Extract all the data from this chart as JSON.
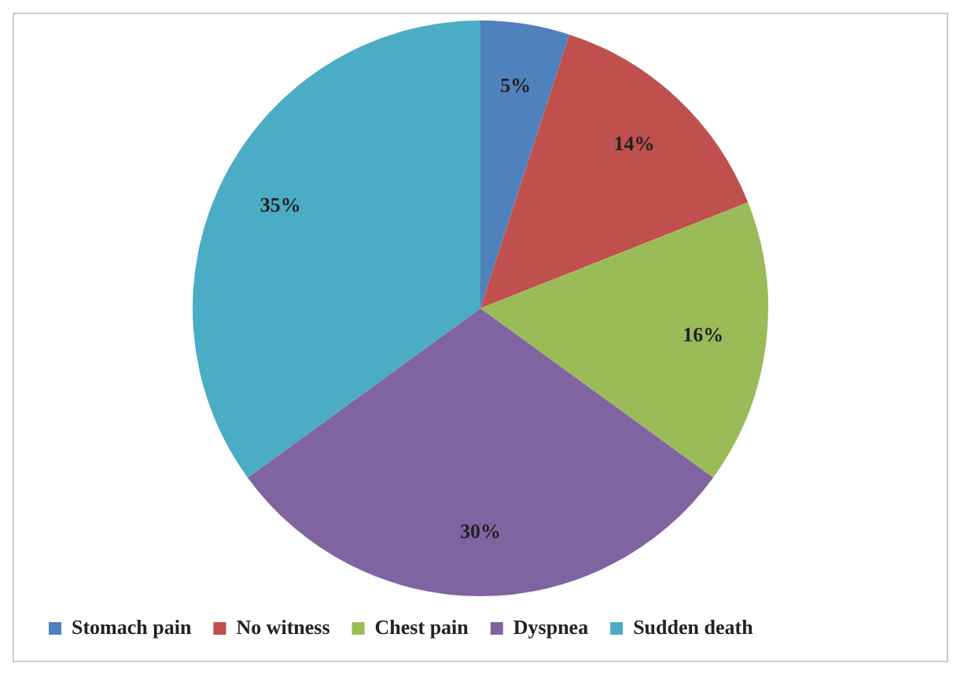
{
  "chart_data": {
    "type": "pie",
    "categories": [
      "Stomach pain",
      "No witness",
      "Chest pain",
      "Dyspnea",
      "Sudden death"
    ],
    "values": [
      5,
      14,
      16,
      30,
      35
    ],
    "colors": [
      "#4f81bd",
      "#c0504d",
      "#9bbb59",
      "#8064a2",
      "#4bacc6"
    ],
    "value_labels": [
      "5%",
      "14%",
      "16%",
      "30%",
      "35%"
    ],
    "legend": "bottom"
  }
}
